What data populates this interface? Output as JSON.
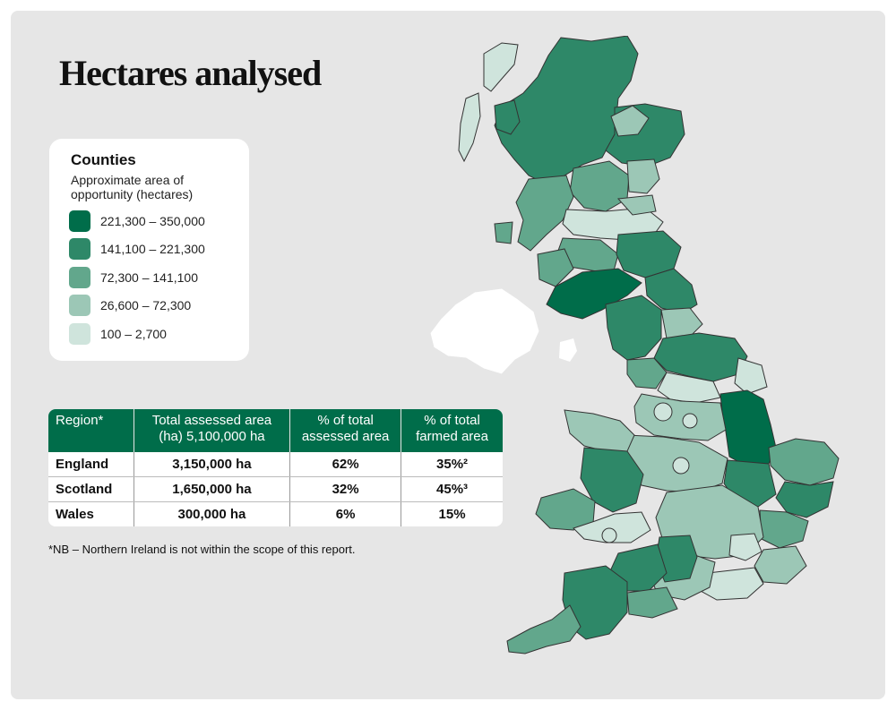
{
  "title": "Hectares analysed",
  "legend": {
    "title": "Counties",
    "subtitle": "Approximate area of opportunity (hectares)",
    "items": [
      {
        "label": "221,300 – 350,000",
        "color": "#006d4a"
      },
      {
        "label": "141,100 – 221,300",
        "color": "#2e8868"
      },
      {
        "label": "72,300 – 141,100",
        "color": "#62a78c"
      },
      {
        "label": "26,600 – 72,300",
        "color": "#9cc7b6"
      },
      {
        "label": "100 – 2,700",
        "color": "#cfe4dc"
      }
    ]
  },
  "table": {
    "headers": [
      "Region*",
      "Total assessed area (ha) 5,100,000 ha",
      "% of total assessed area",
      "% of total farmed area"
    ],
    "rows": [
      {
        "region": "England",
        "area": "3,150,000 ha",
        "pct_assessed": "62%",
        "pct_farmed": "35%²"
      },
      {
        "region": "Scotland",
        "area": "1,650,000 ha",
        "pct_assessed": "32%",
        "pct_farmed": "45%³"
      },
      {
        "region": "Wales",
        "area": "300,000 ha",
        "pct_assessed": "6%",
        "pct_farmed": "15%"
      }
    ]
  },
  "footnote": "*NB – Northern Ireland is not within the scope of this report."
}
